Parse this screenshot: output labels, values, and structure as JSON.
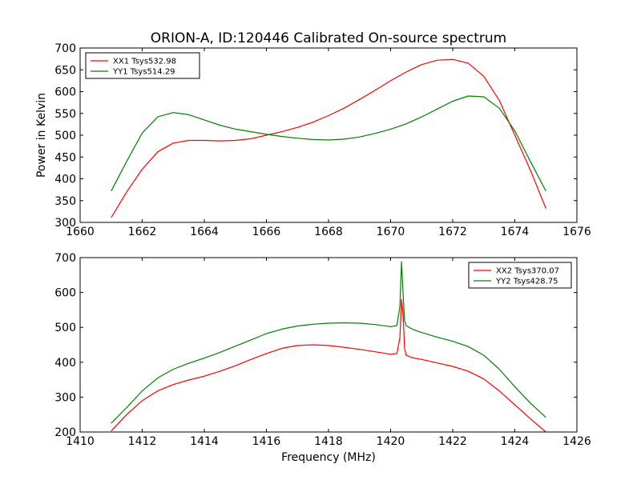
{
  "title": "ORION-A, ID:120446 Calibrated On-source spectrum",
  "chart_data": [
    {
      "type": "line",
      "ylabel": "Power in Kelvin",
      "xlabel": "",
      "xlim": [
        1660,
        1676
      ],
      "ylim": [
        300,
        700
      ],
      "xticks": [
        1660,
        1662,
        1664,
        1666,
        1668,
        1670,
        1672,
        1674,
        1676
      ],
      "yticks": [
        300,
        350,
        400,
        450,
        500,
        550,
        600,
        650,
        700
      ],
      "legend_position": "top-left",
      "series": [
        {
          "name": "XX1 Tsys532.98",
          "color": "#ff0000",
          "x": [
            1661.0,
            1661.5,
            1662.0,
            1662.5,
            1663.0,
            1663.5,
            1664.0,
            1664.5,
            1665.0,
            1665.5,
            1666.0,
            1666.5,
            1667.0,
            1667.5,
            1668.0,
            1668.5,
            1669.0,
            1669.5,
            1670.0,
            1670.5,
            1671.0,
            1671.5,
            1672.0,
            1672.5,
            1673.0,
            1673.5,
            1674.0,
            1674.5,
            1675.0
          ],
          "y": [
            311,
            370,
            422,
            462,
            482,
            488,
            488,
            487,
            488,
            492,
            500,
            508,
            518,
            530,
            545,
            562,
            582,
            603,
            625,
            645,
            662,
            672,
            674,
            665,
            635,
            580,
            500,
            420,
            332
          ]
        },
        {
          "name": "YY1 Tsys514.29",
          "color": "#008000",
          "x": [
            1661.0,
            1661.5,
            1662.0,
            1662.5,
            1663.0,
            1663.5,
            1664.0,
            1664.5,
            1665.0,
            1665.5,
            1666.0,
            1666.5,
            1667.0,
            1667.5,
            1668.0,
            1668.5,
            1669.0,
            1669.5,
            1670.0,
            1670.5,
            1671.0,
            1671.5,
            1672.0,
            1672.5,
            1673.0,
            1673.5,
            1674.0,
            1674.5,
            1675.0
          ],
          "y": [
            372,
            440,
            505,
            542,
            552,
            547,
            535,
            523,
            514,
            508,
            502,
            497,
            493,
            490,
            489,
            491,
            496,
            504,
            514,
            526,
            542,
            560,
            578,
            590,
            588,
            562,
            510,
            440,
            372
          ]
        }
      ]
    },
    {
      "type": "line",
      "ylabel": "",
      "xlabel": "Frequency (MHz)",
      "xlim": [
        1410,
        1426
      ],
      "ylim": [
        200,
        700
      ],
      "xticks": [
        1410,
        1412,
        1414,
        1416,
        1418,
        1420,
        1422,
        1424,
        1426
      ],
      "yticks": [
        200,
        300,
        400,
        500,
        600,
        700
      ],
      "legend_position": "top-right",
      "series": [
        {
          "name": "XX2 Tsys370.07",
          "color": "#ff0000",
          "x": [
            1411.0,
            1411.5,
            1412.0,
            1412.5,
            1413.0,
            1413.5,
            1414.0,
            1414.5,
            1415.0,
            1415.5,
            1416.0,
            1416.5,
            1417.0,
            1417.5,
            1418.0,
            1418.5,
            1419.0,
            1419.5,
            1420.0,
            1420.2,
            1420.3,
            1420.35,
            1420.4,
            1420.45,
            1420.5,
            1420.7,
            1421.0,
            1421.5,
            1422.0,
            1422.5,
            1423.0,
            1423.5,
            1424.0,
            1424.5,
            1425.0
          ],
          "y": [
            203,
            250,
            290,
            318,
            336,
            349,
            360,
            374,
            390,
            408,
            425,
            440,
            448,
            450,
            448,
            443,
            437,
            430,
            423,
            425,
            470,
            580,
            540,
            440,
            420,
            413,
            408,
            398,
            388,
            374,
            352,
            318,
            278,
            238,
            200
          ]
        },
        {
          "name": "YY2 Tsys428.75",
          "color": "#008000",
          "x": [
            1411.0,
            1411.5,
            1412.0,
            1412.5,
            1413.0,
            1413.5,
            1414.0,
            1414.5,
            1415.0,
            1415.5,
            1416.0,
            1416.5,
            1417.0,
            1417.5,
            1418.0,
            1418.5,
            1419.0,
            1419.5,
            1420.0,
            1420.2,
            1420.3,
            1420.35,
            1420.4,
            1420.45,
            1420.5,
            1420.7,
            1421.0,
            1421.5,
            1422.0,
            1422.5,
            1423.0,
            1423.5,
            1424.0,
            1424.5,
            1425.0
          ],
          "y": [
            225,
            270,
            318,
            355,
            380,
            397,
            412,
            428,
            446,
            464,
            482,
            495,
            504,
            509,
            512,
            513,
            512,
            508,
            502,
            505,
            560,
            688,
            600,
            520,
            505,
            495,
            485,
            472,
            460,
            445,
            420,
            380,
            330,
            283,
            242
          ]
        }
      ]
    }
  ]
}
